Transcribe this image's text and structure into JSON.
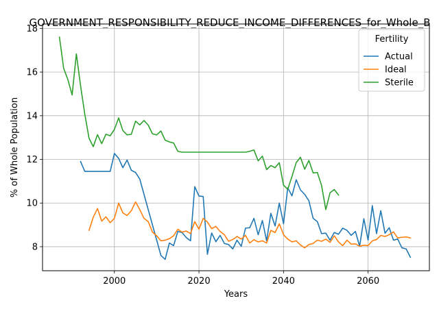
{
  "chart_data": {
    "type": "line",
    "title": "GOVERNMENT_RESPONSIBILITY_REDUCE_INCOME_DIFFERENCES_for_Whole_B",
    "xlabel": "Years",
    "ylabel": "% of Whole Population",
    "xlim": [
      1983,
      2074.5
    ],
    "ylim": [
      6.9,
      18.2
    ],
    "xticks": [
      2000,
      2020,
      2040,
      2060
    ],
    "yticks": [
      8,
      10,
      12,
      14,
      16,
      18
    ],
    "grid": true,
    "legend": {
      "title": "Fertility",
      "placement": "top-right"
    },
    "series": [
      {
        "name": "Actual",
        "color": "#1f77b4",
        "x": [
          1992,
          1993,
          1994,
          1995,
          1996,
          1997,
          1998,
          1999,
          2000,
          2001,
          2002,
          2003,
          2004,
          2005,
          2006,
          2007,
          2008,
          2009,
          2010,
          2011,
          2012,
          2013,
          2014,
          2015,
          2016,
          2017,
          2018,
          2019,
          2020,
          2021,
          2022,
          2023,
          2024,
          2025,
          2026,
          2027,
          2028,
          2029,
          2030,
          2031,
          2032,
          2033,
          2034,
          2035,
          2036,
          2037,
          2038,
          2039,
          2040,
          2041,
          2042,
          2043,
          2044,
          2045,
          2046,
          2047,
          2048,
          2049,
          2050,
          2051,
          2052,
          2053,
          2054,
          2055,
          2056,
          2057,
          2058,
          2059,
          2060,
          2061,
          2062,
          2063,
          2064,
          2065,
          2066,
          2067,
          2068,
          2069,
          2070
        ],
        "values": [
          11.9,
          11.45,
          11.45,
          11.45,
          11.45,
          11.45,
          11.45,
          11.45,
          12.27,
          12.05,
          11.62,
          11.97,
          11.5,
          11.4,
          11.1,
          10.4,
          9.7,
          9.0,
          8.3,
          7.6,
          7.42,
          8.17,
          8.05,
          8.7,
          8.65,
          8.42,
          8.27,
          10.75,
          10.32,
          10.3,
          7.65,
          8.63,
          8.23,
          8.52,
          8.15,
          8.1,
          7.9,
          8.3,
          8.02,
          8.85,
          8.87,
          9.3,
          8.55,
          9.2,
          8.27,
          9.53,
          8.95,
          10.0,
          9.05,
          10.7,
          10.33,
          11.07,
          10.6,
          10.4,
          10.1,
          9.3,
          9.15,
          8.6,
          8.62,
          8.3,
          8.65,
          8.57,
          8.85,
          8.75,
          8.52,
          8.7,
          8.02,
          9.28,
          8.3,
          9.88,
          8.6,
          9.65,
          8.62,
          8.87,
          8.3,
          8.35,
          7.95,
          7.9,
          7.52
        ]
      },
      {
        "name": "Ideal",
        "color": "#ff7f0e",
        "x": [
          1994,
          1995,
          1996,
          1997,
          1998,
          1999,
          2000,
          2001,
          2002,
          2003,
          2004,
          2005,
          2006,
          2007,
          2008,
          2009,
          2010,
          2011,
          2012,
          2013,
          2014,
          2015,
          2016,
          2017,
          2018,
          2019,
          2020,
          2021,
          2022,
          2023,
          2024,
          2025,
          2026,
          2027,
          2028,
          2029,
          2030,
          2031,
          2032,
          2033,
          2034,
          2035,
          2036,
          2037,
          2038,
          2039,
          2040,
          2041,
          2042,
          2043,
          2044,
          2045,
          2046,
          2047,
          2048,
          2049,
          2050,
          2051,
          2052,
          2053,
          2054,
          2055,
          2056,
          2057,
          2058,
          2059,
          2060,
          2061,
          2062,
          2063,
          2064,
          2065,
          2066,
          2067,
          2068,
          2069,
          2070
        ],
        "values": [
          8.75,
          9.35,
          9.75,
          9.17,
          9.37,
          9.1,
          9.3,
          10.0,
          9.55,
          9.43,
          9.65,
          10.05,
          9.7,
          9.3,
          9.15,
          8.67,
          8.5,
          8.27,
          8.3,
          8.37,
          8.5,
          8.8,
          8.67,
          8.72,
          8.6,
          9.15,
          8.8,
          9.3,
          9.13,
          8.83,
          8.93,
          8.7,
          8.55,
          8.25,
          8.33,
          8.47,
          8.35,
          8.52,
          8.17,
          8.32,
          8.22,
          8.27,
          8.17,
          8.75,
          8.65,
          9.05,
          8.55,
          8.35,
          8.22,
          8.27,
          8.08,
          7.95,
          8.1,
          8.15,
          8.3,
          8.25,
          8.35,
          8.2,
          8.5,
          8.22,
          8.05,
          8.3,
          8.12,
          8.13,
          8.02,
          8.07,
          8.05,
          8.27,
          8.33,
          8.52,
          8.47,
          8.55,
          8.68,
          8.4,
          8.43,
          8.45,
          8.4
        ]
      },
      {
        "name": "Sterile",
        "color": "#2ca02c",
        "x": [
          1987,
          1988,
          1989,
          1990,
          1991,
          1992,
          1993,
          1994,
          1995,
          1996,
          1997,
          1998,
          1999,
          2000,
          2001,
          2002,
          2003,
          2004,
          2005,
          2006,
          2007,
          2008,
          2009,
          2010,
          2011,
          2012,
          2013,
          2014,
          2015,
          2016,
          2017,
          2018,
          2019,
          2020,
          2021,
          2022,
          2023,
          2024,
          2025,
          2026,
          2027,
          2028,
          2029,
          2030,
          2031,
          2032,
          2033,
          2034,
          2035,
          2036,
          2037,
          2038,
          2039,
          2040,
          2041,
          2042,
          2043,
          2044,
          2045,
          2046,
          2047,
          2048,
          2049,
          2050,
          2051,
          2052,
          2053
        ],
        "values": [
          17.6,
          16.17,
          15.65,
          14.95,
          16.83,
          15.37,
          14.07,
          12.97,
          12.58,
          13.13,
          12.72,
          13.15,
          13.08,
          13.37,
          13.9,
          13.32,
          13.12,
          13.15,
          13.75,
          13.58,
          13.78,
          13.57,
          13.17,
          13.12,
          13.3,
          12.88,
          12.8,
          12.75,
          12.37,
          12.33,
          12.33,
          12.33,
          12.33,
          12.33,
          12.33,
          12.33,
          12.33,
          12.33,
          12.33,
          12.33,
          12.33,
          12.33,
          12.33,
          12.33,
          12.33,
          12.37,
          12.43,
          11.93,
          12.15,
          11.53,
          11.72,
          11.62,
          11.85,
          10.82,
          10.63,
          11.22,
          11.85,
          12.1,
          11.55,
          11.95,
          11.38,
          11.4,
          10.8,
          9.7,
          10.47,
          10.62,
          10.37
        ]
      }
    ]
  }
}
